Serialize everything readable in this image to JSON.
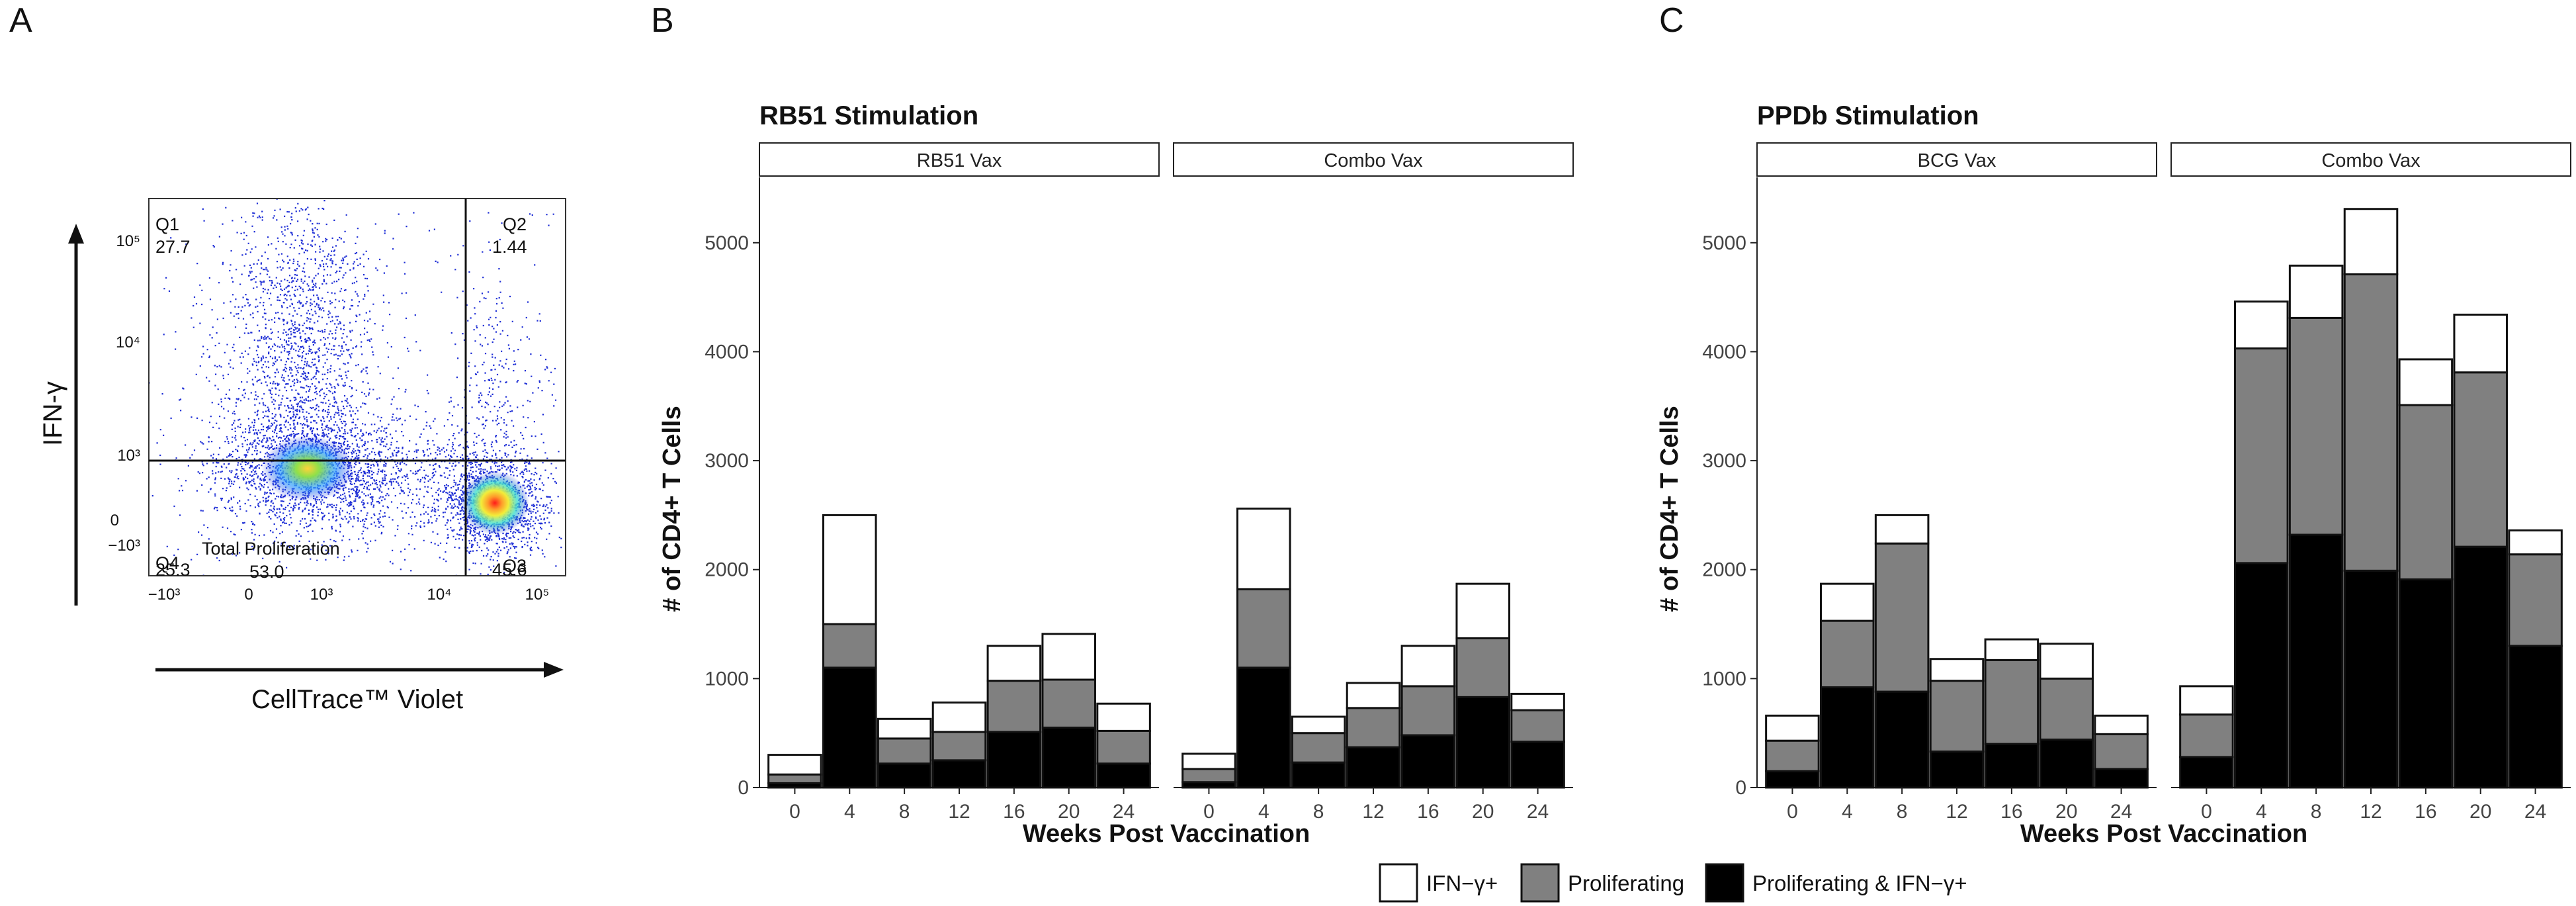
{
  "panel_letters": [
    "A",
    "B",
    "C"
  ],
  "legend": {
    "items": [
      {
        "label": "IFN−γ+",
        "color": "#ffffff"
      },
      {
        "label": "Proliferating",
        "color": "#808080"
      },
      {
        "label": "Proliferating & IFN−γ+",
        "color": "#000000"
      }
    ]
  },
  "flow_panel": {
    "x_label": "CellTrace™ Violet",
    "y_label": "IFN-γ",
    "x_ticks": [
      "−10³",
      "0",
      "10³",
      "10⁴",
      "10⁵"
    ],
    "y_ticks": [
      "10⁵",
      "10⁴",
      "10³",
      "0",
      "−10³"
    ],
    "quadrants": [
      {
        "name": "Q1",
        "value": "27.7"
      },
      {
        "name": "Q2",
        "value": "1.44"
      },
      {
        "name": "Q3",
        "value": "45.6"
      },
      {
        "name": "Q4",
        "value": "25.3"
      }
    ],
    "total_label": "Total Proliferation",
    "total_value": "53.0"
  },
  "chart_data": [
    {
      "type": "bar",
      "stacked": true,
      "title": "RB51 Stimulation",
      "xlabel": "Weeks Post Vaccination",
      "ylabel": "# of CD4+ T Cells",
      "ylim": [
        0,
        5600
      ],
      "y_ticks": [
        0,
        1000,
        2000,
        3000,
        4000,
        5000
      ],
      "categories": [
        "0",
        "4",
        "8",
        "12",
        "16",
        "20",
        "24"
      ],
      "facets": [
        {
          "name": "RB51 Vax",
          "series": [
            {
              "name": "Proliferating & IFN−γ+",
              "values": [
                40,
                1100,
                220,
                250,
                510,
                550,
                220
              ]
            },
            {
              "name": "Proliferating",
              "values": [
                80,
                400,
                230,
                260,
                470,
                440,
                300
              ]
            },
            {
              "name": "IFN−γ+",
              "values": [
                180,
                1000,
                180,
                270,
                320,
                420,
                250
              ]
            }
          ]
        },
        {
          "name": "Combo Vax",
          "series": [
            {
              "name": "Proliferating & IFN−γ+",
              "values": [
                50,
                1100,
                230,
                370,
                480,
                830,
                420
              ]
            },
            {
              "name": "Proliferating",
              "values": [
                120,
                720,
                270,
                360,
                450,
                540,
                290
              ]
            },
            {
              "name": "IFN−γ+",
              "values": [
                140,
                740,
                150,
                230,
                370,
                500,
                150
              ]
            }
          ]
        }
      ]
    },
    {
      "type": "bar",
      "stacked": true,
      "title": "PPDb Stimulation",
      "xlabel": "Weeks Post Vaccination",
      "ylabel": "# of CD4+ T Cells",
      "ylim": [
        0,
        5600
      ],
      "y_ticks": [
        0,
        1000,
        2000,
        3000,
        4000,
        5000
      ],
      "categories": [
        "0",
        "4",
        "8",
        "12",
        "16",
        "20",
        "24"
      ],
      "facets": [
        {
          "name": "BCG Vax",
          "series": [
            {
              "name": "Proliferating & IFN−γ+",
              "values": [
                150,
                920,
                880,
                330,
                400,
                440,
                170
              ]
            },
            {
              "name": "Proliferating",
              "values": [
                280,
                610,
                1360,
                650,
                770,
                560,
                320
              ]
            },
            {
              "name": "IFN−γ+",
              "values": [
                230,
                340,
                260,
                200,
                190,
                320,
                170
              ]
            }
          ]
        },
        {
          "name": "Combo Vax",
          "series": [
            {
              "name": "Proliferating & IFN−γ+",
              "values": [
                280,
                2060,
                2320,
                1990,
                1910,
                2210,
                1300
              ]
            },
            {
              "name": "Proliferating",
              "values": [
                390,
                1970,
                1990,
                2720,
                1600,
                1600,
                840
              ]
            },
            {
              "name": "IFN−γ+",
              "values": [
                260,
                430,
                480,
                600,
                420,
                530,
                220
              ]
            }
          ]
        }
      ]
    }
  ]
}
